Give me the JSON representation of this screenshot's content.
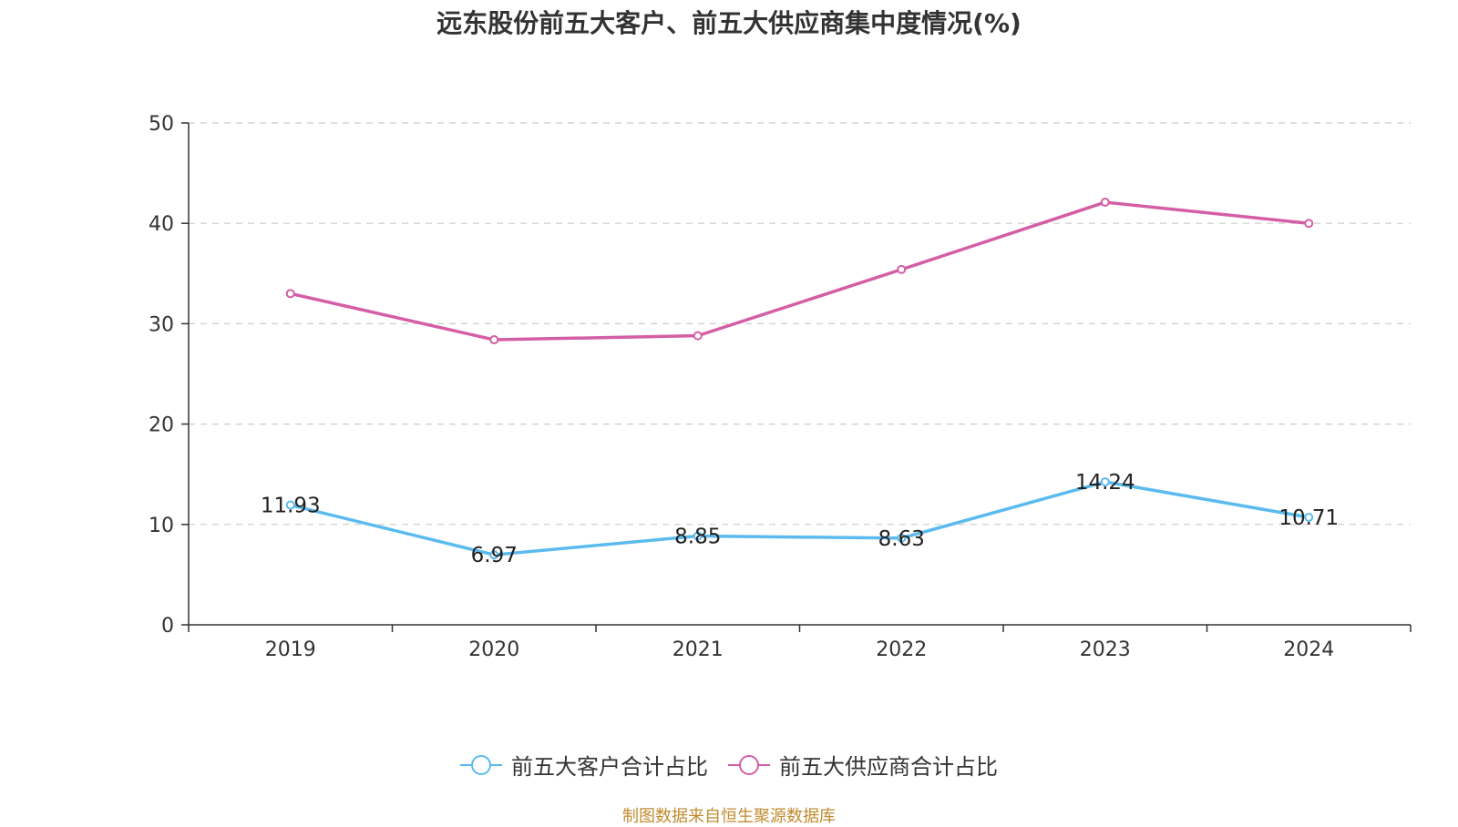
{
  "chart_data": {
    "type": "line",
    "title": "远东股份前五大客户、前五大供应商集中度情况(%)",
    "categories": [
      "2019",
      "2020",
      "2021",
      "2022",
      "2023",
      "2024"
    ],
    "ylim": [
      0,
      50
    ],
    "yticks": [
      0,
      10,
      20,
      30,
      40,
      50
    ],
    "grid": true,
    "legend_position": "bottom",
    "series": [
      {
        "name": "前五大客户合计占比",
        "color": "#5bbbee",
        "values": [
          11.93,
          6.97,
          8.85,
          8.63,
          14.24,
          10.71
        ],
        "labels": [
          "11.93",
          "6.97",
          "8.85",
          "8.63",
          "14.24",
          "10.71"
        ]
      },
      {
        "name": "前五大供应商合计占比",
        "color": "#d45ea5",
        "values": [
          33.0,
          28.4,
          28.8,
          35.4,
          42.1,
          40.0
        ]
      }
    ]
  },
  "source_note": "制图数据来自恒生聚源数据库"
}
